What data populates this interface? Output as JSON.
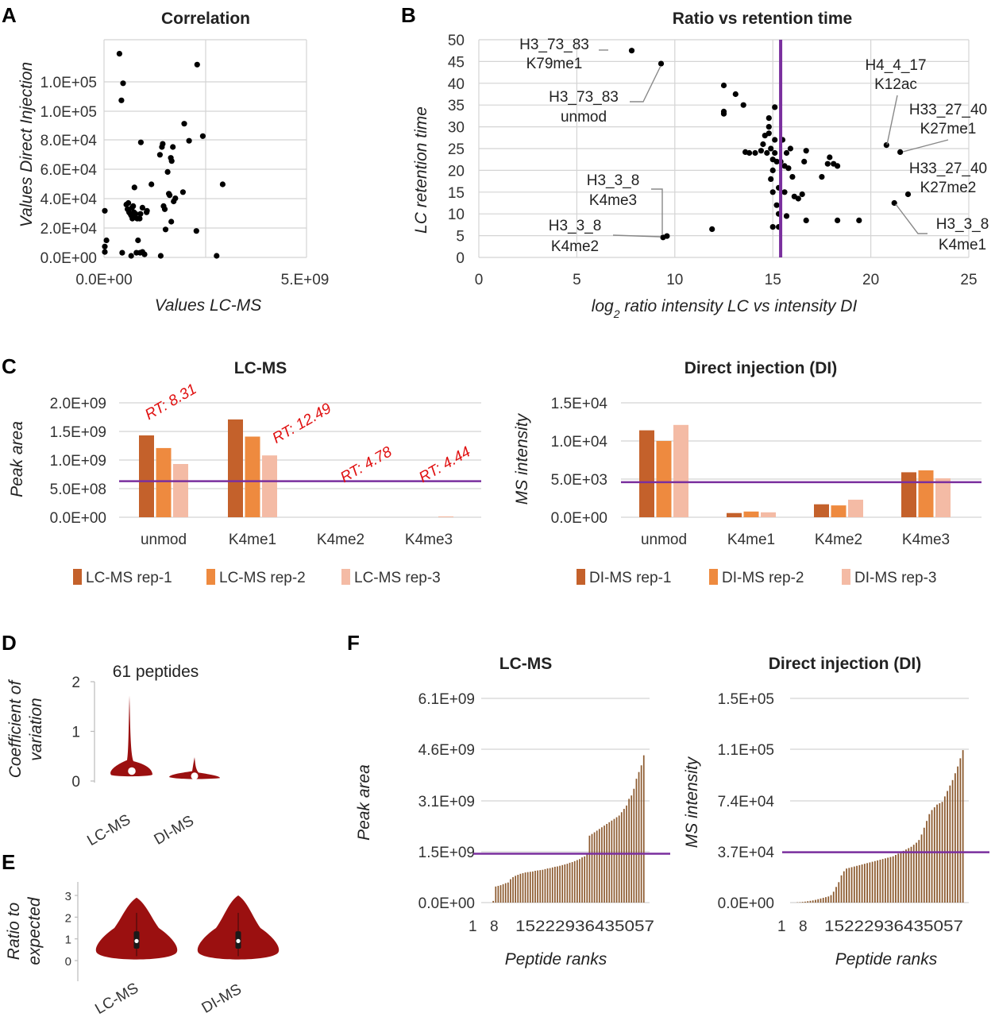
{
  "panel_labels": {
    "A": "A",
    "B": "B",
    "C": "C",
    "D": "D",
    "E": "E",
    "F": "F"
  },
  "colors": {
    "threshold": "#7a2f9e",
    "rep1": "#c4612b",
    "rep2": "#ee8a3f",
    "rep3": "#f4bba5",
    "violin": "#9b1010",
    "rank_bar": "#8c5a2f"
  },
  "chart_data": [
    {
      "id": "A",
      "type": "scatter",
      "title": "Correlation",
      "xlabel": "Values LC-MS",
      "ylabel": "Values Direct Injection",
      "xlim": [
        0,
        5000000000
      ],
      "ylim": [
        0,
        140000
      ],
      "x_ticks": [
        "0.0E+00",
        "5.E+09"
      ],
      "y_ticks": [
        "0.0E+00",
        "2.0E+04",
        "4.0E+04",
        "6.0E+04",
        "8.0E+04",
        "1.0E+05",
        "1.0E+05"
      ],
      "points": [
        [
          0.02,
          30
        ],
        [
          0.02,
          7
        ],
        [
          0.02,
          3.5
        ],
        [
          0.06,
          11
        ],
        [
          0.38,
          131
        ],
        [
          0.45,
          3
        ],
        [
          0.43,
          101
        ],
        [
          0.47,
          112
        ],
        [
          0.55,
          34
        ],
        [
          0.58,
          31
        ],
        [
          0.6,
          35
        ],
        [
          0.62,
          29
        ],
        [
          0.65,
          28
        ],
        [
          0.67,
          27
        ],
        [
          0.67,
          1
        ],
        [
          0.69,
          32
        ],
        [
          0.7,
          25
        ],
        [
          0.72,
          33
        ],
        [
          0.74,
          29
        ],
        [
          0.75,
          45
        ],
        [
          0.76,
          26
        ],
        [
          0.78,
          28
        ],
        [
          0.8,
          3
        ],
        [
          0.82,
          25
        ],
        [
          0.84,
          11
        ],
        [
          0.88,
          25
        ],
        [
          0.89,
          3
        ],
        [
          0.9,
          28
        ],
        [
          0.91,
          74
        ],
        [
          0.95,
          3.5
        ],
        [
          0.95,
          32
        ],
        [
          1.0,
          2
        ],
        [
          1.05,
          29
        ],
        [
          1.06,
          30
        ],
        [
          1.17,
          47
        ],
        [
          1.38,
          66
        ],
        [
          1.4,
          1
        ],
        [
          1.43,
          71
        ],
        [
          1.45,
          73
        ],
        [
          1.47,
          33
        ],
        [
          1.5,
          31
        ],
        [
          1.52,
          18
        ],
        [
          1.57,
          55
        ],
        [
          1.6,
          41
        ],
        [
          1.62,
          40
        ],
        [
          1.65,
          64
        ],
        [
          1.66,
          23
        ],
        [
          1.67,
          62
        ],
        [
          1.7,
          71
        ],
        [
          1.72,
          36
        ],
        [
          1.76,
          38
        ],
        [
          1.95,
          42
        ],
        [
          1.98,
          86
        ],
        [
          2.1,
          75
        ],
        [
          2.28,
          17
        ],
        [
          2.3,
          124
        ],
        [
          2.44,
          78
        ],
        [
          2.78,
          1
        ],
        [
          2.93,
          47
        ]
      ]
    },
    {
      "id": "B",
      "type": "scatter",
      "title": "Ratio vs retention time",
      "xlabel": "log2 ratio intensity LC vs intensity DI",
      "ylabel": "LC retention time",
      "xlim": [
        0,
        25
      ],
      "ylim": [
        0,
        50
      ],
      "x_ticks": [
        "0",
        "5",
        "10",
        "15",
        "20",
        "25"
      ],
      "y_ticks": [
        "0",
        "5",
        "10",
        "15",
        "20",
        "25",
        "30",
        "35",
        "40",
        "45",
        "50"
      ],
      "threshold_x": 15.4,
      "points": [
        [
          7.8,
          47.5
        ],
        [
          9.3,
          44.5
        ],
        [
          9.4,
          4.6
        ],
        [
          9.6,
          4.9
        ],
        [
          11.9,
          6.5
        ],
        [
          12.5,
          39.5
        ],
        [
          12.5,
          33.5
        ],
        [
          12.5,
          33
        ],
        [
          13.1,
          37.5
        ],
        [
          13.5,
          35
        ],
        [
          13.6,
          24.2
        ],
        [
          13.8,
          24
        ],
        [
          14.1,
          24
        ],
        [
          14.4,
          24.5
        ],
        [
          14.5,
          26
        ],
        [
          14.6,
          28
        ],
        [
          14.7,
          24
        ],
        [
          14.8,
          32
        ],
        [
          14.8,
          30
        ],
        [
          14.8,
          28.5
        ],
        [
          14.9,
          25
        ],
        [
          14.9,
          18
        ],
        [
          15.0,
          22.5
        ],
        [
          15.0,
          20
        ],
        [
          15.0,
          15
        ],
        [
          15.0,
          7
        ],
        [
          15.1,
          34.5
        ],
        [
          15.1,
          27
        ],
        [
          15.1,
          24
        ],
        [
          15.2,
          22
        ],
        [
          15.2,
          12
        ],
        [
          15.3,
          16
        ],
        [
          15.3,
          10
        ],
        [
          15.3,
          7
        ],
        [
          15.4,
          22
        ],
        [
          15.5,
          27
        ],
        [
          15.6,
          21
        ],
        [
          15.6,
          15
        ],
        [
          15.7,
          24
        ],
        [
          15.7,
          9.5
        ],
        [
          15.8,
          20.5
        ],
        [
          15.9,
          25
        ],
        [
          16.0,
          18.5
        ],
        [
          16.1,
          14
        ],
        [
          16.3,
          13.5
        ],
        [
          16.5,
          14.5
        ],
        [
          16.6,
          22
        ],
        [
          16.7,
          24.5
        ],
        [
          16.7,
          8.5
        ],
        [
          17.5,
          18.5
        ],
        [
          17.8,
          21.5
        ],
        [
          17.9,
          23
        ],
        [
          18.1,
          21.5
        ],
        [
          18.3,
          21
        ],
        [
          18.3,
          8.5
        ],
        [
          19.4,
          8.5
        ],
        [
          20.8,
          25.8
        ],
        [
          21.2,
          12.5
        ],
        [
          21.5,
          24.2
        ],
        [
          21.9,
          14.5
        ]
      ],
      "annotations": [
        {
          "lines": [
            "H3_73_83",
            "K79me1"
          ]
        },
        {
          "lines": [
            "H3_73_83",
            "unmod"
          ]
        },
        {
          "lines": [
            "H3_3_8",
            "K4me3"
          ]
        },
        {
          "lines": [
            "H3_3_8",
            "K4me2"
          ]
        },
        {
          "lines": [
            "H4_4_17",
            "K12ac"
          ]
        },
        {
          "lines": [
            "H33_27_40",
            "K27me1"
          ]
        },
        {
          "lines": [
            "H33_27_40",
            "K27me2"
          ]
        },
        {
          "lines": [
            "H3_3_8",
            "K4me1"
          ]
        }
      ]
    },
    {
      "id": "C-left",
      "type": "bar",
      "title": "LC-MS",
      "ylabel": "Peak area",
      "categories": [
        "unmod",
        "K4me1",
        "K4me2",
        "K4me3"
      ],
      "ylim": [
        0,
        2000000000
      ],
      "threshold": 630000000,
      "y_ticks": [
        "0.0E+00",
        "5.0E+08",
        "1.0E+09",
        "1.5E+09",
        "2.0E+09"
      ],
      "series": [
        {
          "name": "LC-MS rep-1",
          "values": [
            1430000000,
            1710000000,
            0,
            0
          ]
        },
        {
          "name": "LC-MS rep-2",
          "values": [
            1210000000,
            1410000000,
            0,
            0
          ]
        },
        {
          "name": "LC-MS rep-3",
          "values": [
            930000000,
            1080000000,
            0,
            15000000
          ]
        }
      ],
      "rt_labels": [
        "RT: 8.31",
        "RT: 12.49",
        "RT: 4.78",
        "RT: 4.44"
      ]
    },
    {
      "id": "C-right",
      "type": "bar",
      "title": "Direct injection (DI)",
      "ylabel": "MS intensity",
      "categories": [
        "unmod",
        "K4me1",
        "K4me2",
        "K4me3"
      ],
      "ylim": [
        0,
        15000
      ],
      "threshold": 4600,
      "y_ticks": [
        "0.0E+00",
        "5.0E+03",
        "1.0E+04",
        "1.5E+04"
      ],
      "series": [
        {
          "name": "DI-MS rep-1",
          "values": [
            11400,
            550,
            1700,
            5900
          ]
        },
        {
          "name": "DI-MS rep-2",
          "values": [
            10000,
            750,
            1550,
            6150
          ]
        },
        {
          "name": "DI-MS rep-3",
          "values": [
            12100,
            650,
            2300,
            5100
          ]
        }
      ]
    },
    {
      "id": "D",
      "type": "violin",
      "title": "61 peptides",
      "ylabel_lines": [
        "Coefficient of",
        "variation"
      ],
      "ylim": [
        0,
        2
      ],
      "y_ticks": [
        "0",
        "1",
        "2"
      ],
      "groups": [
        {
          "name": "LC-MS",
          "median": 0.2,
          "max": 1.72
        },
        {
          "name": "DI-MS",
          "median": 0.1,
          "max": 0.48
        }
      ]
    },
    {
      "id": "E",
      "type": "violin",
      "ylabel_lines": [
        "Ratio to",
        "expected"
      ],
      "ylim": [
        0,
        3
      ],
      "y_ticks": [
        "0",
        "1",
        "2",
        "3"
      ],
      "groups": [
        {
          "name": "LC-MS",
          "median": 0.9,
          "max": 2.9
        },
        {
          "name": "DI-MS",
          "median": 0.9,
          "max": 3.0
        }
      ]
    },
    {
      "id": "F-left",
      "type": "bar",
      "title": "LC-MS",
      "ylabel": "Peak area",
      "xlabel": "Peptide ranks",
      "ylim": [
        0,
        6100000000
      ],
      "threshold": 1460000000,
      "y_ticks": [
        "0.0E+00",
        "1.5E+09",
        "3.1E+09",
        "4.6E+09",
        "6.1E+09"
      ],
      "x_ticks": [
        "1",
        "8",
        "1522293643505"
      ],
      "x_ticks_display": [
        "1",
        "8",
        "15222936435057"
      ],
      "values": [
        0.0,
        0.0,
        0.0,
        0.05,
        0.48,
        0.5,
        0.52,
        0.55,
        0.58,
        0.6,
        0.7,
        0.76,
        0.8,
        0.83,
        0.86,
        0.88,
        0.9,
        0.91,
        0.92,
        0.93,
        0.95,
        0.96,
        0.97,
        0.98,
        1.0,
        1.02,
        1.03,
        1.05,
        1.07,
        1.08,
        1.1,
        1.12,
        1.14,
        1.16,
        1.19,
        1.21,
        1.24,
        1.27,
        1.3,
        1.35,
        1.38,
        1.45,
        2.0,
        2.05,
        2.1,
        2.15,
        2.2,
        2.25,
        2.3,
        2.35,
        2.4,
        2.45,
        2.5,
        2.55,
        2.6,
        2.7,
        2.8,
        2.9,
        3.1,
        3.2,
        3.4,
        3.7,
        3.9,
        4.1,
        4.4
      ]
    },
    {
      "id": "F-right",
      "type": "bar",
      "title": "Direct injection (DI)",
      "ylabel": "MS intensity",
      "xlabel": "Peptide ranks",
      "ylim": [
        0,
        150000
      ],
      "threshold": 37000,
      "y_ticks": [
        "0.0E+00",
        "3.7E+04",
        "7.4E+04",
        "1.1E+05",
        "1.5E+05"
      ],
      "x_ticks_display": [
        "1",
        "8",
        "15222936435057"
      ],
      "values": [
        0.0,
        0.2,
        0.3,
        0.5,
        0.7,
        1.0,
        1.3,
        1.6,
        2.0,
        2.5,
        3.0,
        3.5,
        4.0,
        4.5,
        5.5,
        8.0,
        11.5,
        15.0,
        20.0,
        23.0,
        25.0,
        25.5,
        26.0,
        26.5,
        27.0,
        27.5,
        28.0,
        28.5,
        29.0,
        29.5,
        30.0,
        30.5,
        31.0,
        31.5,
        32.0,
        32.5,
        33.0,
        33.5,
        34.0,
        35.0,
        36.0,
        37.0,
        38.0,
        39.0,
        40.0,
        41.0,
        42.5,
        44.0,
        46.0,
        50.0,
        55.0,
        60.0,
        65.0,
        68.0,
        70.0,
        72.0,
        73.0,
        74.0,
        78.0,
        82.0,
        86.0,
        90.0,
        95.0,
        100.0,
        106.0,
        112.0
      ]
    }
  ]
}
